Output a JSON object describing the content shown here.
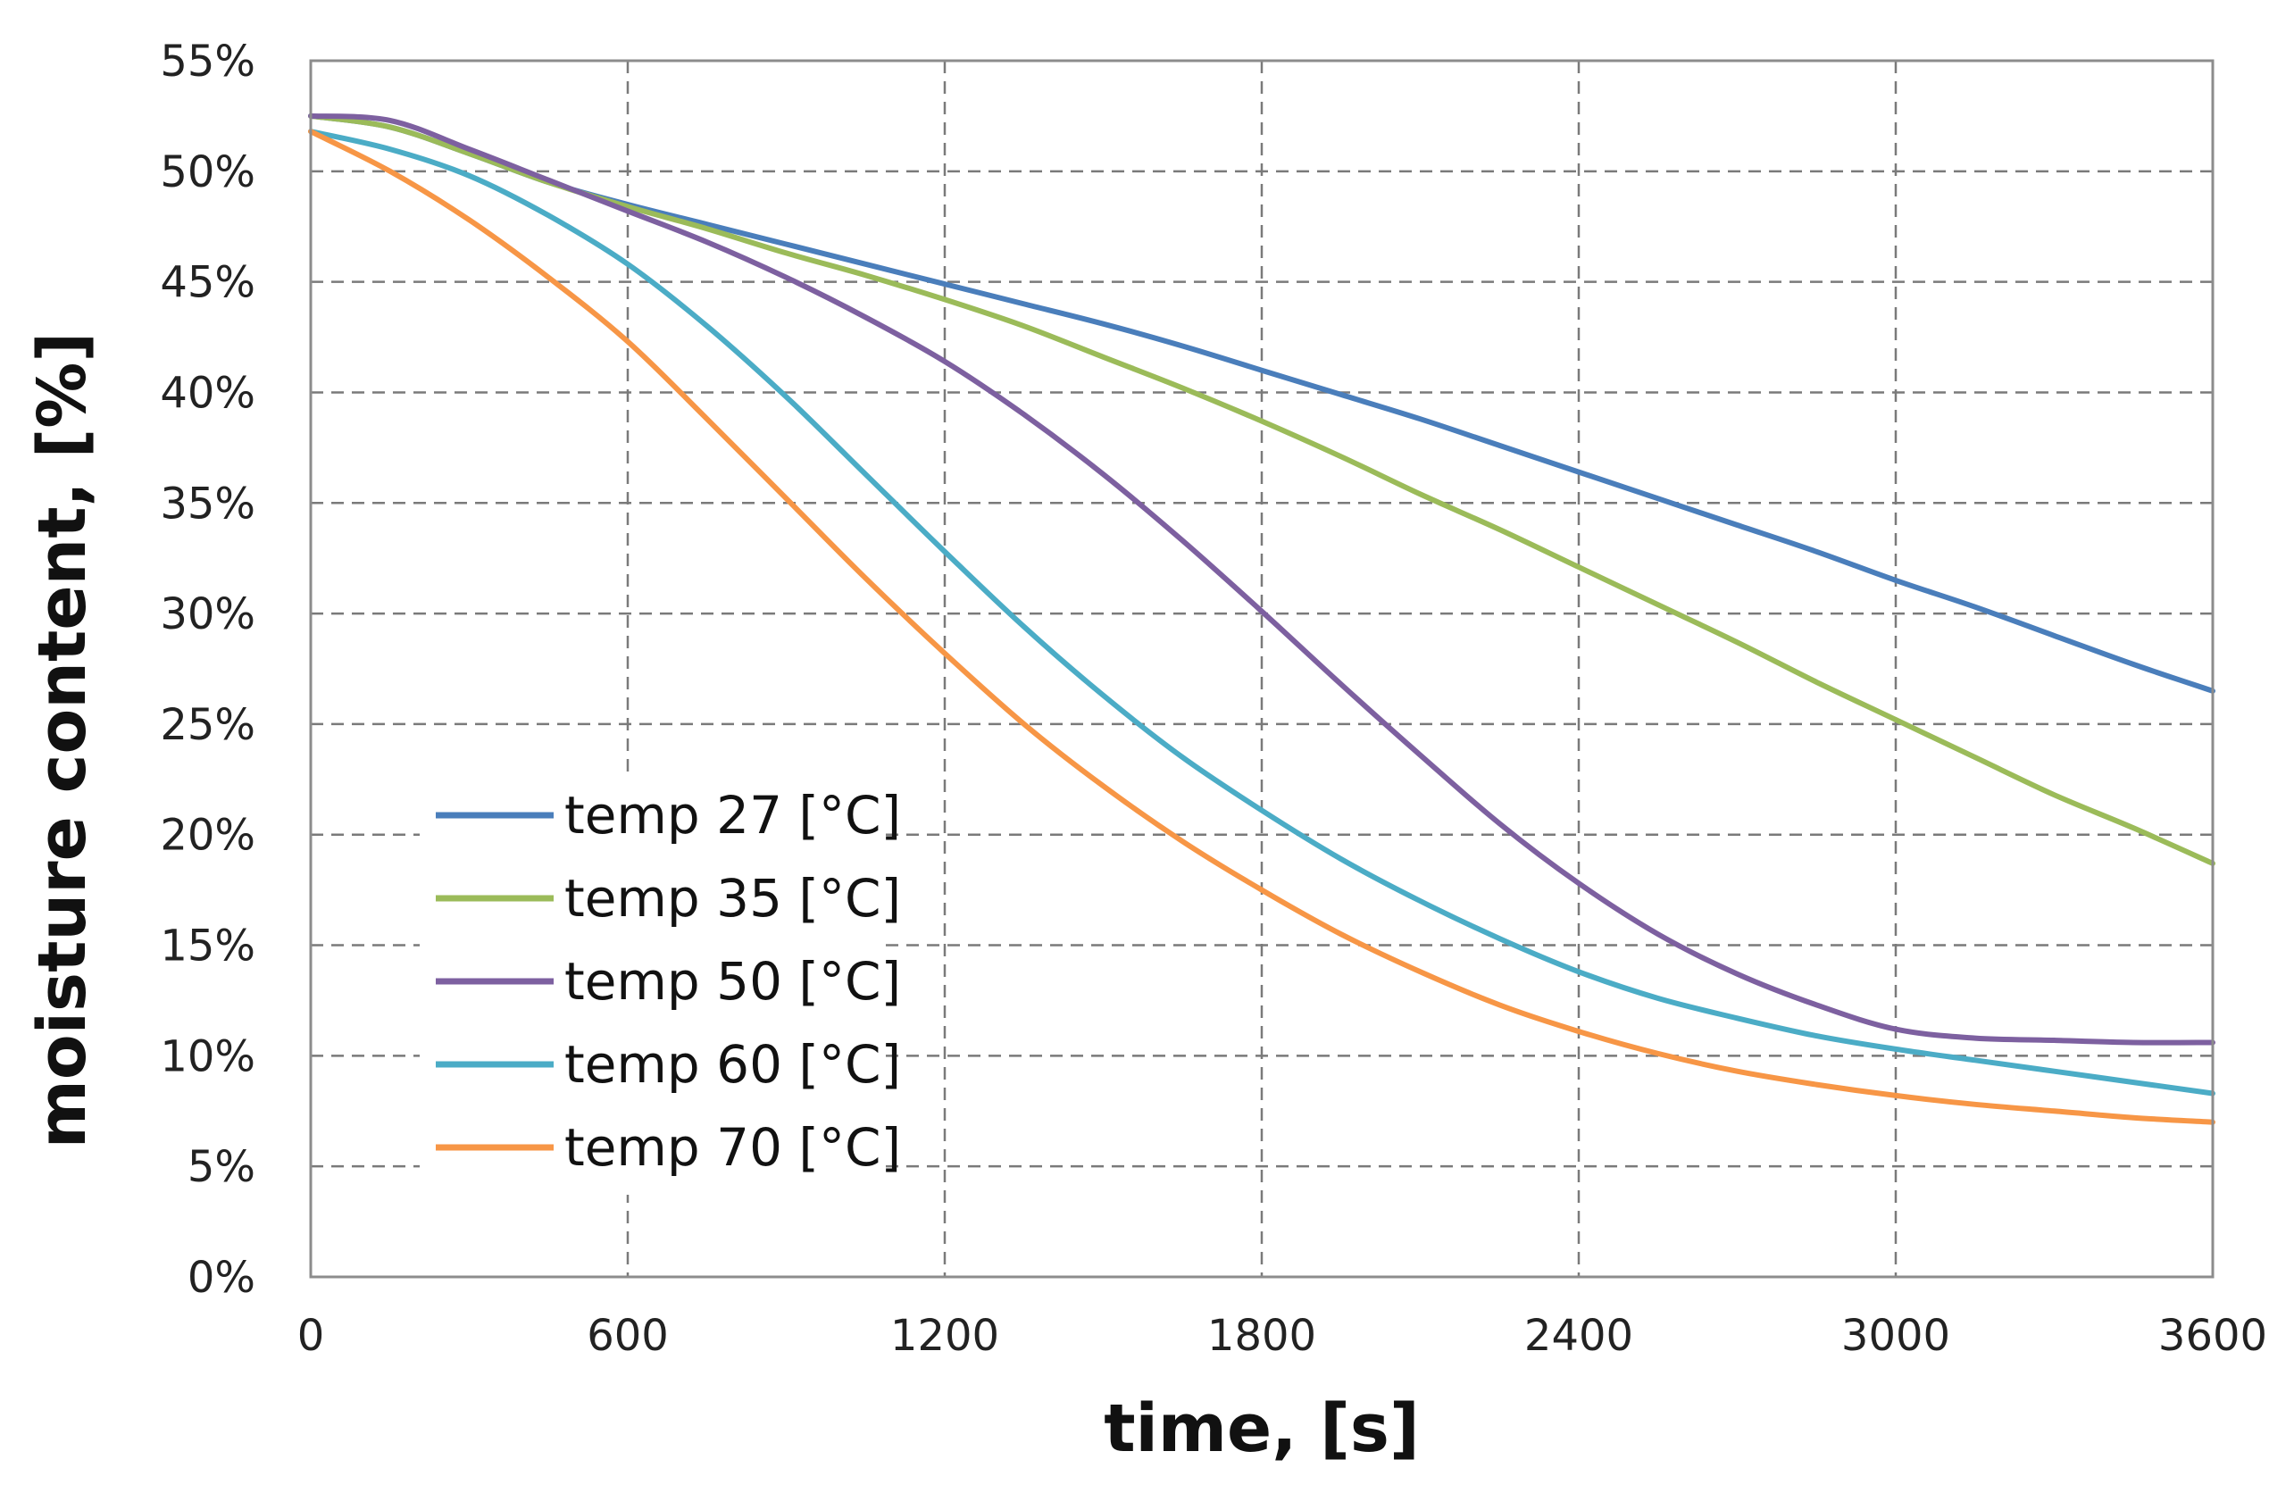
{
  "chart_data": {
    "type": "line",
    "title": "",
    "xlabel": "time, [s]",
    "ylabel": "moisture content, [%]",
    "xlim": [
      0,
      3600
    ],
    "ylim": [
      0,
      55
    ],
    "x_ticks": [
      0,
      600,
      1200,
      1800,
      2400,
      3000,
      3600
    ],
    "x_tick_labels": [
      "0",
      "600",
      "1200",
      "1800",
      "2400",
      "3000",
      "3600"
    ],
    "y_ticks": [
      0,
      5,
      10,
      15,
      20,
      25,
      30,
      35,
      40,
      45,
      50,
      55
    ],
    "y_tick_labels": [
      "0%",
      "5%",
      "10%",
      "15%",
      "20%",
      "25%",
      "30%",
      "35%",
      "40%",
      "45%",
      "50%",
      "55%"
    ],
    "grid": true,
    "legend_position": "bottom-left",
    "x": [
      0,
      150,
      300,
      450,
      600,
      750,
      900,
      1050,
      1200,
      1350,
      1500,
      1650,
      1800,
      1950,
      2100,
      2250,
      2400,
      2550,
      2700,
      2850,
      3000,
      3150,
      3300,
      3450,
      3600
    ],
    "series": [
      {
        "name": "temp 27 [°C]",
        "color": "#4a7ebb",
        "values": [
          52.5,
          52.0,
          50.8,
          49.5,
          48.5,
          47.6,
          46.7,
          45.8,
          44.9,
          44.0,
          43.1,
          42.1,
          41.0,
          39.9,
          38.8,
          37.6,
          36.4,
          35.2,
          34.0,
          32.8,
          31.5,
          30.3,
          29.0,
          27.7,
          26.5
        ]
      },
      {
        "name": "temp 35 [°C]",
        "color": "#9bbb59",
        "values": [
          52.5,
          52.0,
          50.8,
          49.5,
          48.4,
          47.4,
          46.3,
          45.3,
          44.2,
          43.0,
          41.6,
          40.2,
          38.7,
          37.1,
          35.4,
          33.8,
          32.1,
          30.4,
          28.7,
          26.9,
          25.2,
          23.5,
          21.8,
          20.3,
          18.7
        ]
      },
      {
        "name": "temp 50 [°C]",
        "color": "#7d60a0",
        "values": [
          52.5,
          52.3,
          51.0,
          49.6,
          48.2,
          46.8,
          45.2,
          43.4,
          41.4,
          39.0,
          36.3,
          33.3,
          30.1,
          26.8,
          23.6,
          20.5,
          17.8,
          15.5,
          13.7,
          12.3,
          11.2,
          10.8,
          10.7,
          10.6,
          10.6
        ]
      },
      {
        "name": "temp 60 [°C]",
        "color": "#4bacc6",
        "values": [
          51.8,
          51.0,
          49.8,
          48.0,
          45.8,
          43.0,
          39.8,
          36.3,
          32.8,
          29.4,
          26.3,
          23.5,
          21.1,
          18.9,
          17.0,
          15.3,
          13.8,
          12.6,
          11.7,
          10.9,
          10.3,
          9.8,
          9.3,
          8.8,
          8.3
        ]
      },
      {
        "name": "temp 70 [°C]",
        "color": "#f79646",
        "values": [
          51.8,
          50.0,
          47.8,
          45.2,
          42.3,
          38.8,
          35.2,
          31.6,
          28.2,
          25.0,
          22.2,
          19.7,
          17.5,
          15.5,
          13.8,
          12.3,
          11.1,
          10.1,
          9.3,
          8.7,
          8.2,
          7.8,
          7.5,
          7.2,
          7.0
        ]
      }
    ]
  }
}
